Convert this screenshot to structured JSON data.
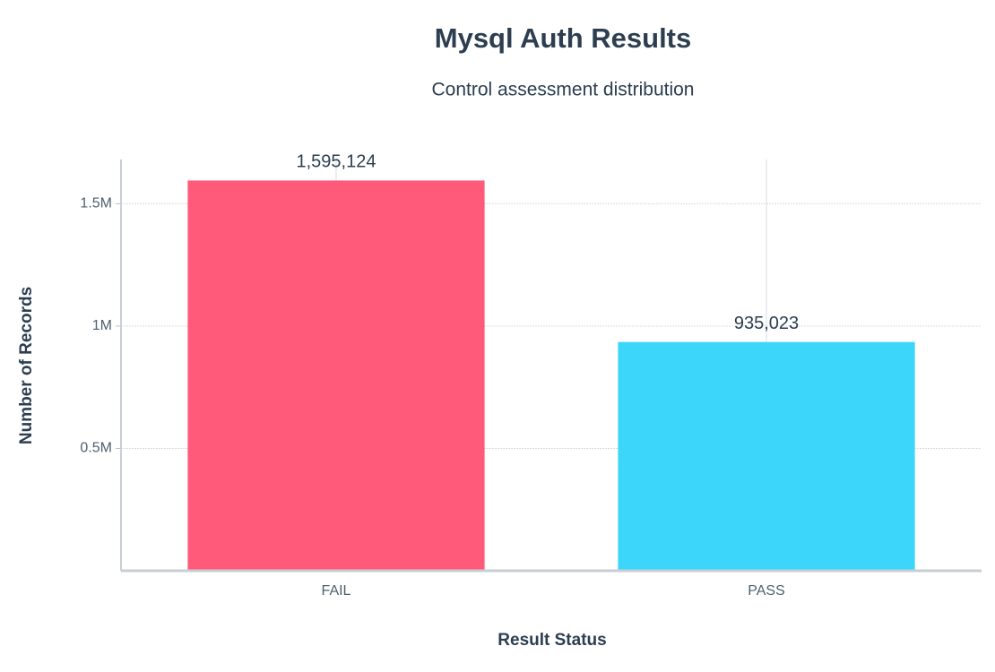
{
  "chart_data": {
    "type": "bar",
    "title": "Mysql Auth Results",
    "subtitle": "Control assessment distribution",
    "x_label": "Result Status",
    "y_label": "Number of Records",
    "categories": [
      "FAIL",
      "PASS"
    ],
    "values": [
      1595124,
      935023
    ],
    "value_labels": [
      "1,595,124",
      "935,023"
    ],
    "colors": [
      "#ff5a7a",
      "#3dd6fb"
    ],
    "ylim": [
      0,
      1681000
    ],
    "yticks": [
      {
        "value": 500000,
        "label": "0.5M"
      },
      {
        "value": 1000000,
        "label": "1M"
      },
      {
        "value": 1500000,
        "label": "1.5M"
      }
    ],
    "grid": true
  }
}
